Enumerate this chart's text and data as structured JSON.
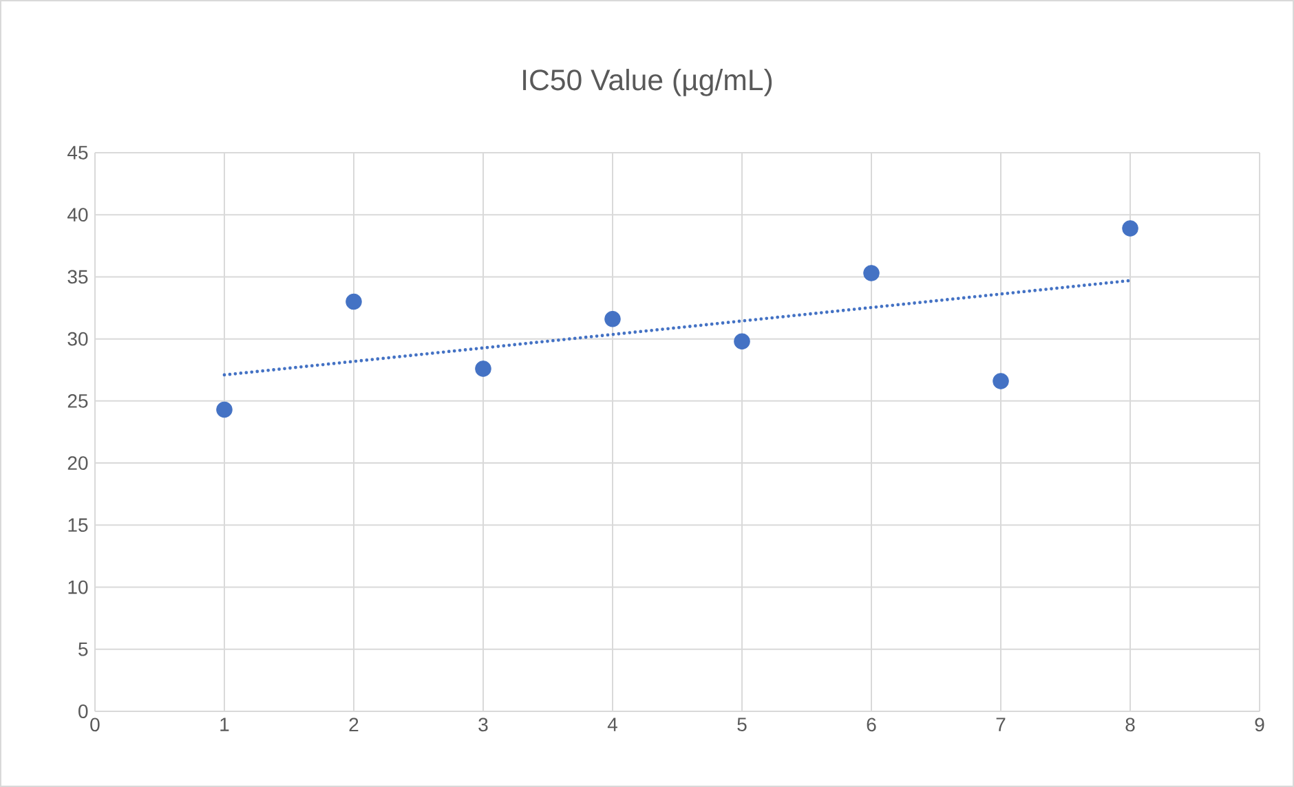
{
  "chart_data": {
    "type": "scatter",
    "title": "IC50 Value (µg/mL)",
    "xlim": [
      0,
      9
    ],
    "xticks": [
      0,
      1,
      2,
      3,
      4,
      5,
      6,
      7,
      8,
      9
    ],
    "ylim": [
      0,
      45
    ],
    "yticks": [
      0,
      5,
      10,
      15,
      20,
      25,
      30,
      35,
      40,
      45
    ],
    "grid": true,
    "marker": "circle",
    "series": [
      {
        "color": "#4472c4",
        "x": [
          1,
          2,
          3,
          4,
          5,
          6,
          7,
          8
        ],
        "values": [
          24.3,
          33.0,
          27.6,
          31.6,
          29.8,
          35.3,
          26.6,
          38.9
        ]
      },
      {
        "type": "line",
        "color": "#4472c4",
        "marker": "none",
        "line_style": "dotted",
        "x": [
          1,
          8
        ],
        "values": [
          27.1,
          34.7
        ]
      }
    ]
  }
}
